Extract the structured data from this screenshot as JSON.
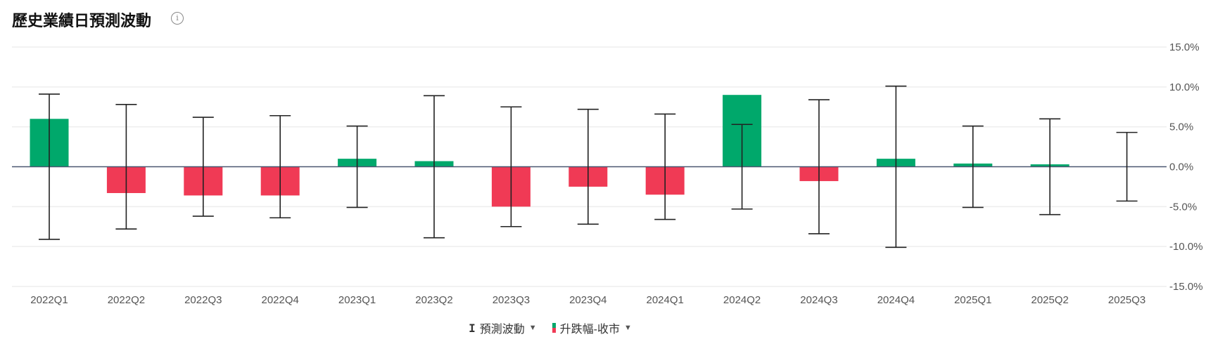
{
  "title": "歷史業績日預測波動",
  "info_icon": "info-circle-icon",
  "legend": [
    {
      "label": "預測波動",
      "icon": "error-bar-icon"
    },
    {
      "label": "升跌幅-收市",
      "icon": "green-red-bar-icon"
    }
  ],
  "colors": {
    "up": "#00a86b",
    "down": "#f03a55",
    "error_bar": "#222222",
    "zero_line": "#4a5670",
    "grid": "#eeeeee"
  },
  "chart_data": {
    "type": "bar",
    "title": "歷史業績日預測波動",
    "categories": [
      "2022Q1",
      "2022Q2",
      "2022Q3",
      "2022Q4",
      "2023Q1",
      "2023Q2",
      "2023Q3",
      "2023Q4",
      "2024Q1",
      "2024Q2",
      "2024Q3",
      "2024Q4",
      "2025Q1",
      "2025Q2",
      "2025Q3"
    ],
    "series": [
      {
        "name": "升跌幅-收市",
        "type": "bar",
        "values": [
          6.0,
          -3.3,
          -3.6,
          -3.6,
          1.0,
          0.7,
          -5.0,
          -2.5,
          -3.5,
          9.0,
          -1.8,
          1.0,
          0.4,
          0.3,
          null
        ]
      },
      {
        "name": "預測波動",
        "type": "errorbar",
        "values": [
          9.1,
          7.8,
          6.2,
          6.4,
          5.1,
          8.9,
          7.5,
          7.2,
          6.6,
          5.3,
          8.4,
          10.1,
          5.1,
          6.0,
          4.3
        ]
      }
    ],
    "ylim": [
      -15,
      15
    ],
    "yticks": [
      "15.0%",
      "10.0%",
      "5.0%",
      "0.0%",
      "-5.0%",
      "-10.0%",
      "-15.0%"
    ],
    "ytick_values": [
      15,
      10,
      5,
      0,
      -5,
      -10,
      -15
    ],
    "yaxis_position": "right",
    "grid": true,
    "legend_position": "bottom"
  }
}
